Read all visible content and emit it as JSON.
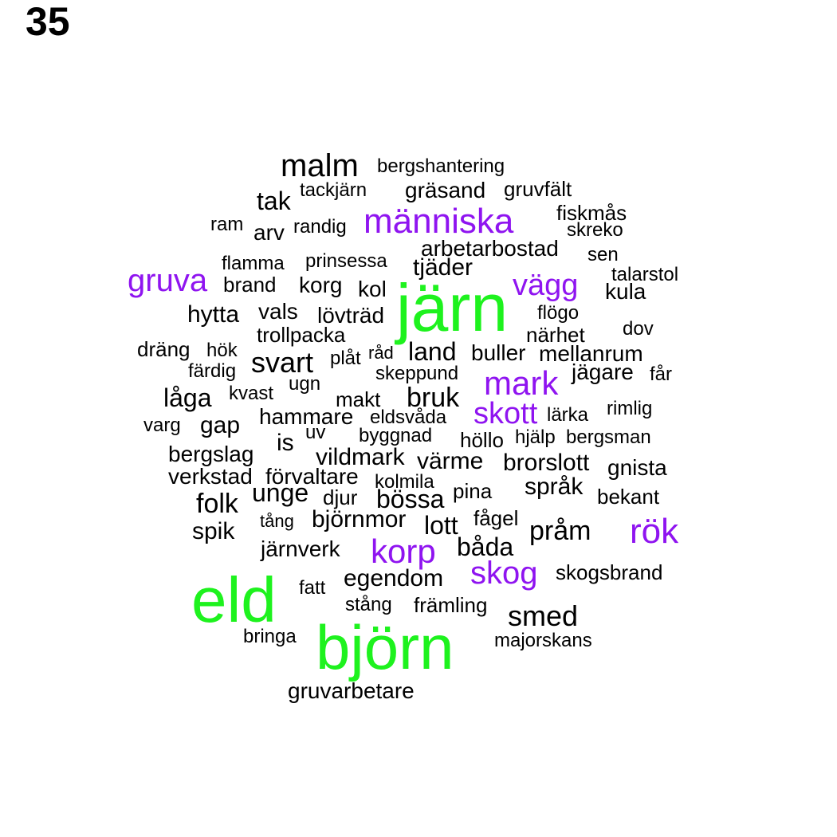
{
  "page_number": "35",
  "colors": {
    "black": "#000000",
    "purple": "#8f14f0",
    "green": "#1ef21e"
  },
  "words": [
    {
      "text": "malm",
      "color": "black"
    },
    {
      "text": "bergshantering",
      "color": "black"
    },
    {
      "text": "tackjärn",
      "color": "black"
    },
    {
      "text": "gräsand",
      "color": "black"
    },
    {
      "text": "gruvfält",
      "color": "black"
    },
    {
      "text": "tak",
      "color": "black"
    },
    {
      "text": "fiskmås",
      "color": "black"
    },
    {
      "text": "människa",
      "color": "purple"
    },
    {
      "text": "ram",
      "color": "black"
    },
    {
      "text": "arv",
      "color": "black"
    },
    {
      "text": "randig",
      "color": "black"
    },
    {
      "text": "skreko",
      "color": "black"
    },
    {
      "text": "arbetarbostad",
      "color": "black"
    },
    {
      "text": "sen",
      "color": "black"
    },
    {
      "text": "flamma",
      "color": "black"
    },
    {
      "text": "prinsessa",
      "color": "black"
    },
    {
      "text": "tjäder",
      "color": "black"
    },
    {
      "text": "talarstol",
      "color": "black"
    },
    {
      "text": "gruva",
      "color": "purple"
    },
    {
      "text": "brand",
      "color": "black"
    },
    {
      "text": "korg",
      "color": "black"
    },
    {
      "text": "kol",
      "color": "black"
    },
    {
      "text": "järn",
      "color": "green"
    },
    {
      "text": "vägg",
      "color": "purple"
    },
    {
      "text": "kula",
      "color": "black"
    },
    {
      "text": "hytta",
      "color": "black"
    },
    {
      "text": "vals",
      "color": "black"
    },
    {
      "text": "lövträd",
      "color": "black"
    },
    {
      "text": "flögo",
      "color": "black"
    },
    {
      "text": "trollpacka",
      "color": "black"
    },
    {
      "text": "närhet",
      "color": "black"
    },
    {
      "text": "dov",
      "color": "black"
    },
    {
      "text": "dräng",
      "color": "black"
    },
    {
      "text": "hök",
      "color": "black"
    },
    {
      "text": "råd",
      "color": "black"
    },
    {
      "text": "land",
      "color": "black"
    },
    {
      "text": "buller",
      "color": "black"
    },
    {
      "text": "mellanrum",
      "color": "black"
    },
    {
      "text": "plåt",
      "color": "black"
    },
    {
      "text": "svart",
      "color": "black"
    },
    {
      "text": "färdig",
      "color": "black"
    },
    {
      "text": "skeppund",
      "color": "black"
    },
    {
      "text": "jägare",
      "color": "black"
    },
    {
      "text": "får",
      "color": "black"
    },
    {
      "text": "ugn",
      "color": "black"
    },
    {
      "text": "mark",
      "color": "purple"
    },
    {
      "text": "kvast",
      "color": "black"
    },
    {
      "text": "låga",
      "color": "black"
    },
    {
      "text": "makt",
      "color": "black"
    },
    {
      "text": "bruk",
      "color": "black"
    },
    {
      "text": "rimlig",
      "color": "black"
    },
    {
      "text": "skott",
      "color": "purple"
    },
    {
      "text": "lärka",
      "color": "black"
    },
    {
      "text": "hammare",
      "color": "black"
    },
    {
      "text": "eldsvåda",
      "color": "black"
    },
    {
      "text": "varg",
      "color": "black"
    },
    {
      "text": "gap",
      "color": "black"
    },
    {
      "text": "uv",
      "color": "black"
    },
    {
      "text": "byggnad",
      "color": "black"
    },
    {
      "text": "höllo",
      "color": "black"
    },
    {
      "text": "hjälp",
      "color": "black"
    },
    {
      "text": "bergsman",
      "color": "black"
    },
    {
      "text": "is",
      "color": "black"
    },
    {
      "text": "bergslag",
      "color": "black"
    },
    {
      "text": "vildmark",
      "color": "black"
    },
    {
      "text": "värme",
      "color": "black"
    },
    {
      "text": "brorslott",
      "color": "black"
    },
    {
      "text": "gnista",
      "color": "black"
    },
    {
      "text": "verkstad",
      "color": "black"
    },
    {
      "text": "förvaltare",
      "color": "black"
    },
    {
      "text": "kolmila",
      "color": "black"
    },
    {
      "text": "språk",
      "color": "black"
    },
    {
      "text": "unge",
      "color": "black"
    },
    {
      "text": "pina",
      "color": "black"
    },
    {
      "text": "bekant",
      "color": "black"
    },
    {
      "text": "folk",
      "color": "black"
    },
    {
      "text": "djur",
      "color": "black"
    },
    {
      "text": "bössa",
      "color": "black"
    },
    {
      "text": "fågel",
      "color": "black"
    },
    {
      "text": "tång",
      "color": "black"
    },
    {
      "text": "björnmor",
      "color": "black"
    },
    {
      "text": "lott",
      "color": "black"
    },
    {
      "text": "rök",
      "color": "purple"
    },
    {
      "text": "spik",
      "color": "black"
    },
    {
      "text": "pråm",
      "color": "black"
    },
    {
      "text": "korp",
      "color": "purple"
    },
    {
      "text": "järnverk",
      "color": "black"
    },
    {
      "text": "båda",
      "color": "black"
    },
    {
      "text": "skog",
      "color": "purple"
    },
    {
      "text": "skogsbrand",
      "color": "black"
    },
    {
      "text": "eld",
      "color": "green"
    },
    {
      "text": "egendom",
      "color": "black"
    },
    {
      "text": "fatt",
      "color": "black"
    },
    {
      "text": "stång",
      "color": "black"
    },
    {
      "text": "främling",
      "color": "black"
    },
    {
      "text": "smed",
      "color": "black"
    },
    {
      "text": "björn",
      "color": "green"
    },
    {
      "text": "bringa",
      "color": "black"
    },
    {
      "text": "majorskans",
      "color": "black"
    },
    {
      "text": "gruvarbetare",
      "color": "black"
    }
  ]
}
